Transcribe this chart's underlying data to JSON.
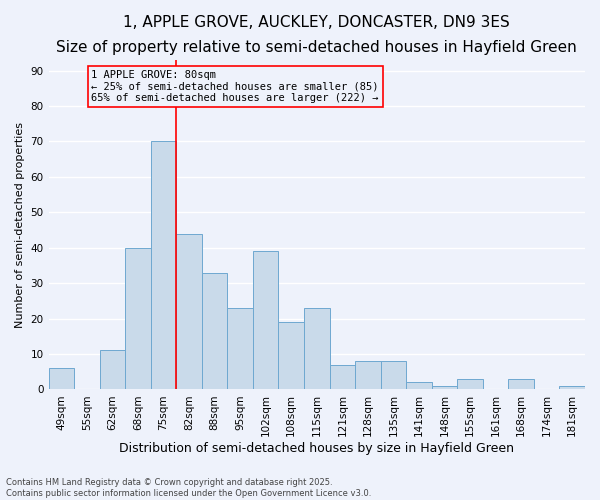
{
  "title": "1, APPLE GROVE, AUCKLEY, DONCASTER, DN9 3ES",
  "subtitle": "Size of property relative to semi-detached houses in Hayfield Green",
  "xlabel": "Distribution of semi-detached houses by size in Hayfield Green",
  "ylabel": "Number of semi-detached properties",
  "categories": [
    "49sqm",
    "55sqm",
    "62sqm",
    "68sqm",
    "75sqm",
    "82sqm",
    "88sqm",
    "95sqm",
    "102sqm",
    "108sqm",
    "115sqm",
    "121sqm",
    "128sqm",
    "135sqm",
    "141sqm",
    "148sqm",
    "155sqm",
    "161sqm",
    "168sqm",
    "174sqm",
    "181sqm"
  ],
  "values": [
    6,
    0,
    11,
    40,
    70,
    44,
    33,
    23,
    39,
    19,
    23,
    7,
    8,
    8,
    2,
    1,
    3,
    0,
    3,
    0,
    1
  ],
  "bar_color": "#c9daea",
  "bar_edge_color": "#6ea8d0",
  "background_color": "#eef2fb",
  "grid_color": "#ffffff",
  "property_line_x": 4.5,
  "annotation_line1": "1 APPLE GROVE: 80sqm",
  "annotation_line2": "← 25% of semi-detached houses are smaller (85)",
  "annotation_line3": "65% of semi-detached houses are larger (222) →",
  "annotation_box_color": "#ff0000",
  "ylim": [
    0,
    93
  ],
  "yticks": [
    0,
    10,
    20,
    30,
    40,
    50,
    60,
    70,
    80,
    90
  ],
  "footer": "Contains HM Land Registry data © Crown copyright and database right 2025.\nContains public sector information licensed under the Open Government Licence v3.0.",
  "title_fontsize": 11,
  "subtitle_fontsize": 9.5,
  "xlabel_fontsize": 9,
  "ylabel_fontsize": 8,
  "tick_fontsize": 7.5,
  "annotation_fontsize": 7.5,
  "footer_fontsize": 6
}
